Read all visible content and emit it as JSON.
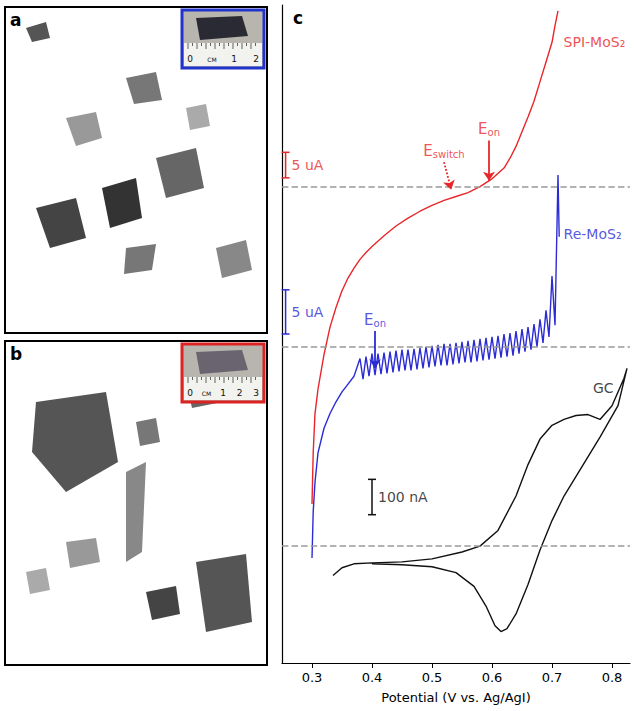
{
  "panels": [
    {
      "letter": "a",
      "inset_ruler": [
        "0",
        "CM",
        "1",
        "2"
      ],
      "inset_border": "#2233cc"
    },
    {
      "letter": "b",
      "inset_ruler": [
        "0",
        "CM",
        "1",
        "2",
        "3"
      ],
      "inset_border": "#dd2222"
    }
  ],
  "chart_data": {
    "type": "line",
    "title": "c",
    "x_label": "Potential (V vs. Ag/AgI)",
    "xlim": [
      0.25,
      0.83
    ],
    "xticks": [
      0.3,
      0.4,
      0.5,
      0.6,
      0.7,
      0.8
    ],
    "ylim": [
      0,
      670
    ],
    "tick_labels": "x",
    "grid": false,
    "series": [
      {
        "name": "SPI-MoS₂",
        "color": "#e8262a",
        "baseline": 485,
        "name_at": [
          0.716,
          632
        ],
        "x": [
          0.3,
          0.302,
          0.305,
          0.31,
          0.32,
          0.33,
          0.34,
          0.35,
          0.36,
          0.37,
          0.38,
          0.39,
          0.4,
          0.42,
          0.44,
          0.46,
          0.48,
          0.5,
          0.52,
          0.54,
          0.56,
          0.58,
          0.6,
          0.62,
          0.63,
          0.64,
          0.65,
          0.66,
          0.67,
          0.68,
          0.69,
          0.7,
          0.705,
          0.71
        ],
        "values": [
          162,
          214,
          254,
          279,
          314,
          342,
          362,
          379,
          392,
          402,
          411,
          418,
          424,
          435,
          445,
          453,
          460,
          466,
          471,
          475,
          479,
          485,
          493,
          504,
          514,
          526,
          541,
          556,
          572,
          592,
          612,
          632,
          649,
          664
        ]
      },
      {
        "name": "Re-MoS₂",
        "color": "#2b2bd6",
        "baseline": 322,
        "name_at": [
          0.716,
          437
        ],
        "x": [
          0.3,
          0.302,
          0.305,
          0.31,
          0.32,
          0.33,
          0.34,
          0.35,
          0.36,
          0.37,
          0.38,
          0.385,
          0.39,
          0.395,
          0.4,
          0.405,
          0.41,
          0.415,
          0.42,
          0.425,
          0.43,
          0.435,
          0.44,
          0.445,
          0.45,
          0.455,
          0.46,
          0.465,
          0.47,
          0.475,
          0.48,
          0.485,
          0.49,
          0.495,
          0.5,
          0.505,
          0.51,
          0.515,
          0.52,
          0.525,
          0.53,
          0.535,
          0.54,
          0.545,
          0.55,
          0.555,
          0.56,
          0.565,
          0.57,
          0.575,
          0.58,
          0.585,
          0.59,
          0.595,
          0.6,
          0.605,
          0.61,
          0.615,
          0.62,
          0.625,
          0.63,
          0.635,
          0.64,
          0.645,
          0.65,
          0.655,
          0.66,
          0.665,
          0.67,
          0.675,
          0.68,
          0.685,
          0.69,
          0.695,
          0.7,
          0.705,
          0.71,
          0.712
        ],
        "values": [
          107,
          154,
          184,
          214,
          239,
          254,
          266,
          276,
          284,
          292,
          310,
          289,
          312,
          292,
          315,
          293,
          315,
          294,
          316,
          295,
          317,
          296,
          318,
          297,
          319,
          298,
          319,
          298,
          320,
          299,
          321,
          300,
          322,
          301,
          323,
          302,
          324,
          303,
          325,
          303,
          325,
          304,
          326,
          305,
          327,
          306,
          328,
          306,
          329,
          307,
          330,
          308,
          331,
          309,
          332,
          310,
          333,
          311,
          335,
          312,
          336,
          313,
          338,
          315,
          340,
          317,
          342,
          319,
          345,
          322,
          350,
          326,
          359,
          332,
          394,
          344,
          497,
          434
        ]
      },
      {
        "name": "GC",
        "color": "#111111",
        "baseline": 119,
        "name_at": [
          0.765,
          280
        ],
        "x": [
          0.335,
          0.35,
          0.37,
          0.4,
          0.45,
          0.5,
          0.55,
          0.58,
          0.61,
          0.64,
          0.66,
          0.68,
          0.7,
          0.72,
          0.74,
          0.76,
          0.78,
          0.8,
          0.82,
          0.825,
          0.81,
          0.78,
          0.75,
          0.72,
          0.7,
          0.68,
          0.66,
          0.64,
          0.625,
          0.615,
          0.605,
          0.59,
          0.57,
          0.54,
          0.5,
          0.45,
          0.4
        ],
        "values": [
          89,
          97,
          101,
          102,
          103,
          106,
          113,
          119,
          135,
          170,
          202,
          228,
          242,
          248,
          252,
          253,
          248,
          262,
          290,
          300,
          262,
          230,
          200,
          170,
          145,
          115,
          80,
          50,
          35,
          32,
          38,
          58,
          78,
          92,
          98,
          100,
          101
        ]
      }
    ],
    "scale_bars": [
      {
        "label": "5 uA",
        "color": "#e8262a",
        "x": 0.256,
        "y": [
          494,
          520
        ]
      },
      {
        "label": "5 uA",
        "color": "#2b2bd6",
        "x": 0.256,
        "y": [
          335,
          380
        ]
      },
      {
        "label": "100 nA",
        "color": "#111111",
        "x": 0.4,
        "y": [
          151,
          187
        ]
      }
    ],
    "arrows": [
      {
        "text": "E",
        "subscript": "switch",
        "color": "#e8262a",
        "line_style": "dotted",
        "x": [
          0.52,
          0.532
        ],
        "y": [
          510,
          482
        ]
      },
      {
        "text": "E",
        "subscript": "on",
        "color": "#e8262a",
        "line_style": "solid",
        "x": [
          0.595,
          0.595
        ],
        "y": [
          532,
          491
        ]
      },
      {
        "text": "E",
        "subscript": "on",
        "color": "#2b2bd6",
        "line_style": "solid",
        "x": [
          0.405,
          0.405
        ],
        "y": [
          338,
          300
        ]
      }
    ]
  }
}
